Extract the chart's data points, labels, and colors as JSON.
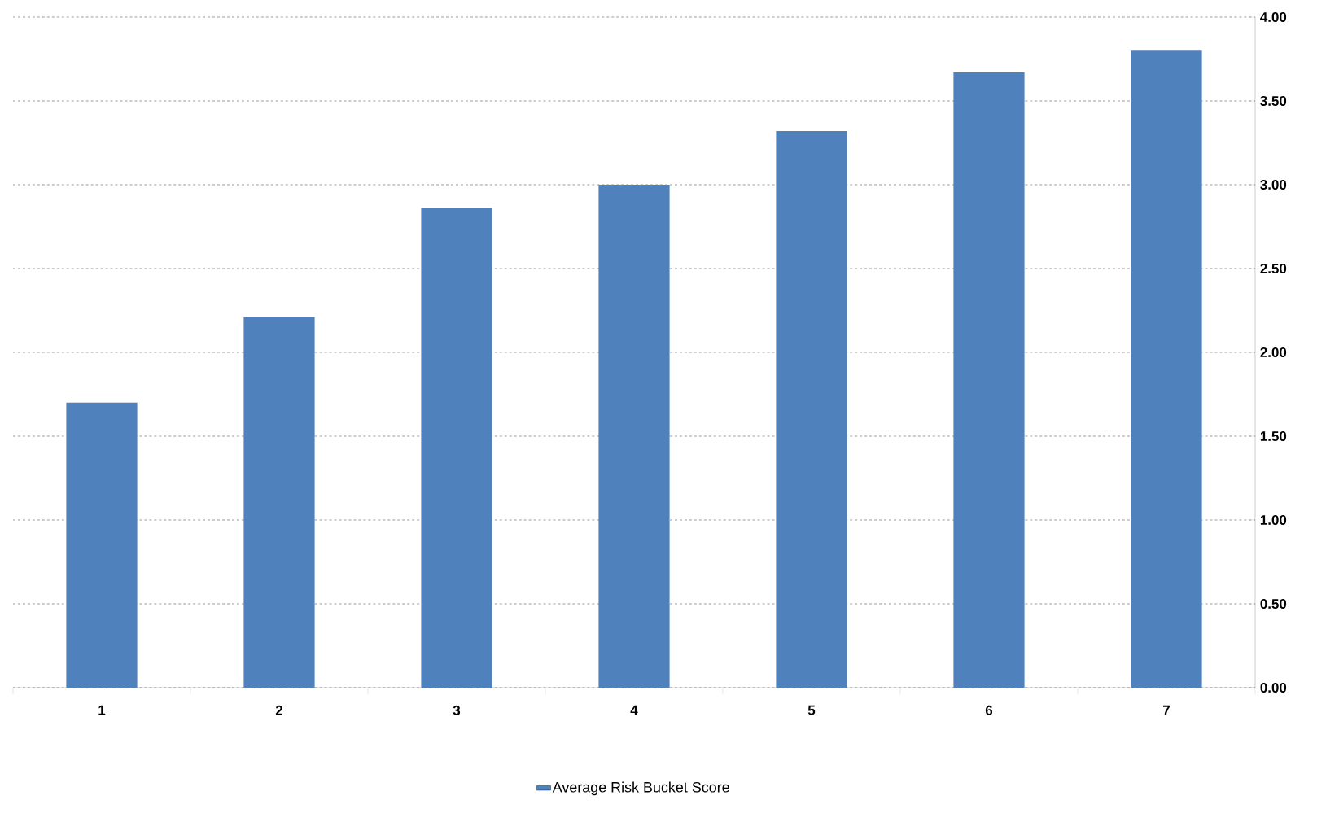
{
  "chart_data": {
    "type": "bar",
    "categories": [
      "1",
      "2",
      "3",
      "4",
      "5",
      "6",
      "7"
    ],
    "series": [
      {
        "name": "Average Risk Bucket Score",
        "color": "#4f81bd",
        "values": [
          1.7,
          2.21,
          2.86,
          3.0,
          3.32,
          3.67,
          3.8
        ]
      }
    ],
    "ylim": [
      0,
      4
    ],
    "yticks": [
      {
        "value": 0,
        "label": "0.00"
      },
      {
        "value": 0.5,
        "label": "0.50"
      },
      {
        "value": 1,
        "label": "1.00"
      },
      {
        "value": 1.5,
        "label": "1.50"
      },
      {
        "value": 2,
        "label": "2.00"
      },
      {
        "value": 2.5,
        "label": "2.50"
      },
      {
        "value": 3,
        "label": "3.00"
      },
      {
        "value": 3.5,
        "label": "3.50"
      },
      {
        "value": 4,
        "label": "4.00"
      }
    ],
    "grid": "y",
    "legend": "bottom"
  }
}
